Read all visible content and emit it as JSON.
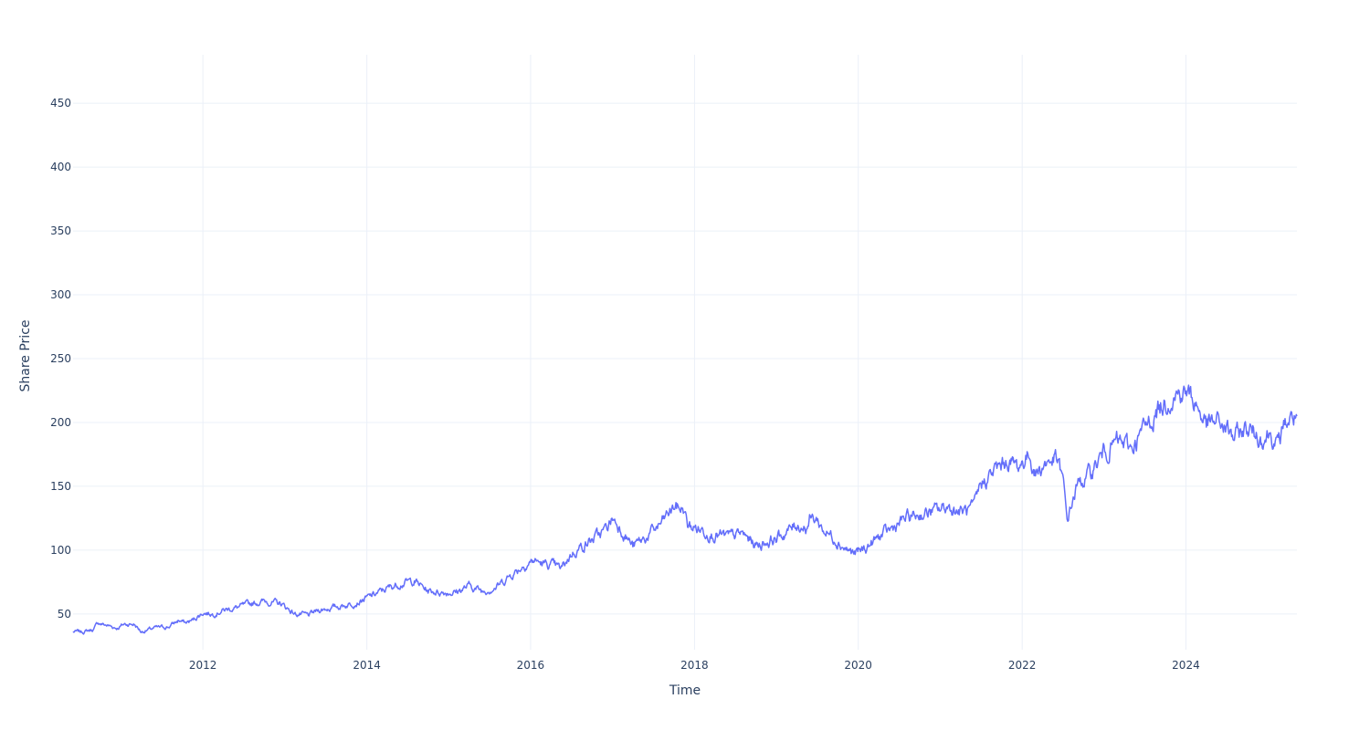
{
  "chart_data": {
    "type": "line",
    "title": "",
    "xlabel": "Time",
    "ylabel": "Share Price",
    "xlim": [
      "2010-06-01",
      "2025-05-10"
    ],
    "ylim": [
      22,
      488
    ],
    "x_ticks": [
      "2012",
      "2014",
      "2016",
      "2018",
      "2020",
      "2022",
      "2024"
    ],
    "y_ticks": [
      50,
      100,
      150,
      200,
      250,
      300,
      350,
      400,
      450
    ],
    "grid": true,
    "legend": "none",
    "line_color": "#636efa",
    "series": [
      {
        "points": [
          [
            "2010-06-01",
            36
          ],
          [
            "2010-07-15",
            36
          ],
          [
            "2010-09-01",
            38
          ],
          [
            "2010-09-20",
            43
          ],
          [
            "2010-11-01",
            41
          ],
          [
            "2010-12-15",
            39
          ],
          [
            "2011-01-15",
            42
          ],
          [
            "2011-03-01",
            42
          ],
          [
            "2011-04-01",
            36
          ],
          [
            "2011-06-01",
            39
          ],
          [
            "2011-08-01",
            40
          ],
          [
            "2011-09-15",
            45
          ],
          [
            "2011-10-15",
            43
          ],
          [
            "2011-11-15",
            45
          ],
          [
            "2012-01-01",
            51
          ],
          [
            "2012-02-15",
            50
          ],
          [
            "2012-04-01",
            53
          ],
          [
            "2012-06-01",
            55
          ],
          [
            "2012-08-01",
            58
          ],
          [
            "2012-10-01",
            60
          ],
          [
            "2012-12-15",
            58
          ],
          [
            "2013-02-15",
            50
          ],
          [
            "2013-04-15",
            49
          ],
          [
            "2013-06-01",
            53
          ],
          [
            "2013-08-01",
            55
          ],
          [
            "2013-10-01",
            57
          ],
          [
            "2013-12-01",
            60
          ],
          [
            "2014-02-01",
            65
          ],
          [
            "2014-04-01",
            70
          ],
          [
            "2014-06-01",
            74
          ],
          [
            "2014-08-01",
            76
          ],
          [
            "2014-10-01",
            68
          ],
          [
            "2014-12-01",
            67
          ],
          [
            "2015-02-01",
            67
          ],
          [
            "2015-04-01",
            72
          ],
          [
            "2015-06-01",
            68
          ],
          [
            "2015-08-01",
            71
          ],
          [
            "2015-10-01",
            80
          ],
          [
            "2015-12-01",
            88
          ],
          [
            "2016-01-15",
            92
          ],
          [
            "2016-03-01",
            89
          ],
          [
            "2016-04-15",
            88
          ],
          [
            "2016-05-15",
            85
          ],
          [
            "2016-07-01",
            97
          ],
          [
            "2016-08-15",
            103
          ],
          [
            "2016-10-01",
            108
          ],
          [
            "2016-12-01",
            116
          ],
          [
            "2017-01-01",
            125
          ],
          [
            "2017-02-15",
            115
          ],
          [
            "2017-04-01",
            103
          ],
          [
            "2017-06-01",
            110
          ],
          [
            "2017-08-01",
            120
          ],
          [
            "2017-10-01",
            134
          ],
          [
            "2017-11-15",
            132
          ],
          [
            "2017-12-01",
            119
          ],
          [
            "2018-02-01",
            116
          ],
          [
            "2018-04-01",
            112
          ],
          [
            "2018-06-01",
            110
          ],
          [
            "2018-08-01",
            113
          ],
          [
            "2018-10-01",
            104
          ],
          [
            "2018-12-01",
            107
          ],
          [
            "2019-02-01",
            112
          ],
          [
            "2019-04-01",
            120
          ],
          [
            "2019-05-15",
            118
          ],
          [
            "2019-06-01",
            125
          ],
          [
            "2019-07-01",
            124
          ],
          [
            "2019-08-01",
            115
          ],
          [
            "2019-09-15",
            110
          ],
          [
            "2019-11-01",
            102
          ],
          [
            "2019-12-15",
            97
          ],
          [
            "2020-02-01",
            101
          ],
          [
            "2020-04-01",
            110
          ],
          [
            "2020-06-01",
            117
          ],
          [
            "2020-08-01",
            125
          ],
          [
            "2020-10-01",
            128
          ],
          [
            "2020-12-01",
            130
          ],
          [
            "2021-02-01",
            134
          ],
          [
            "2021-04-01",
            130
          ],
          [
            "2021-06-01",
            132
          ],
          [
            "2021-07-01",
            152
          ],
          [
            "2021-09-01",
            162
          ],
          [
            "2021-11-01",
            170
          ],
          [
            "2021-12-15",
            165
          ],
          [
            "2022-02-01",
            175
          ],
          [
            "2022-03-01",
            160
          ],
          [
            "2022-04-15",
            168
          ],
          [
            "2022-06-01",
            172
          ],
          [
            "2022-07-01",
            155
          ],
          [
            "2022-07-20",
            123
          ],
          [
            "2022-09-01",
            150
          ],
          [
            "2022-11-01",
            160
          ],
          [
            "2023-01-01",
            177
          ],
          [
            "2023-03-01",
            185
          ],
          [
            "2023-05-01",
            180
          ],
          [
            "2023-07-01",
            195
          ],
          [
            "2023-09-01",
            210
          ],
          [
            "2023-11-01",
            222
          ],
          [
            "2024-01-01",
            224
          ],
          [
            "2024-02-15",
            215
          ],
          [
            "2024-04-01",
            198
          ],
          [
            "2024-06-01",
            200
          ],
          [
            "2024-08-01",
            188
          ],
          [
            "2024-10-01",
            196
          ],
          [
            "2024-12-01",
            188
          ],
          [
            "2025-01-15",
            192
          ],
          [
            "2025-02-15",
            180
          ],
          [
            "2025-03-15",
            200
          ],
          [
            "2025-05-10",
            205
          ]
        ]
      }
    ]
  }
}
